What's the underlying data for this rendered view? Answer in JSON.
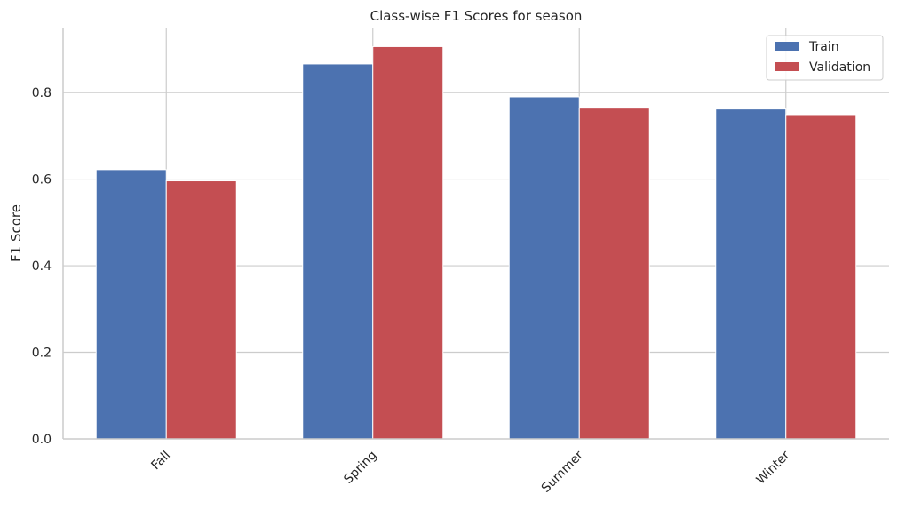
{
  "chart_data": {
    "type": "bar",
    "title": "Class-wise F1 Scores for season",
    "xlabel": "",
    "ylabel": "F1 Score",
    "categories": [
      "Fall",
      "Spring",
      "Summer",
      "Winter"
    ],
    "series": [
      {
        "name": "Train",
        "color": "#4c72b0",
        "values": [
          0.622,
          0.866,
          0.79,
          0.762
        ]
      },
      {
        "name": "Validation",
        "color": "#c44e52",
        "values": [
          0.596,
          0.906,
          0.764,
          0.749
        ]
      }
    ],
    "ylim": [
      0,
      0.95
    ],
    "yticks": [
      "0.0",
      "0.2",
      "0.4",
      "0.6",
      "0.8"
    ],
    "grid": true,
    "legend_position": "top-right"
  }
}
